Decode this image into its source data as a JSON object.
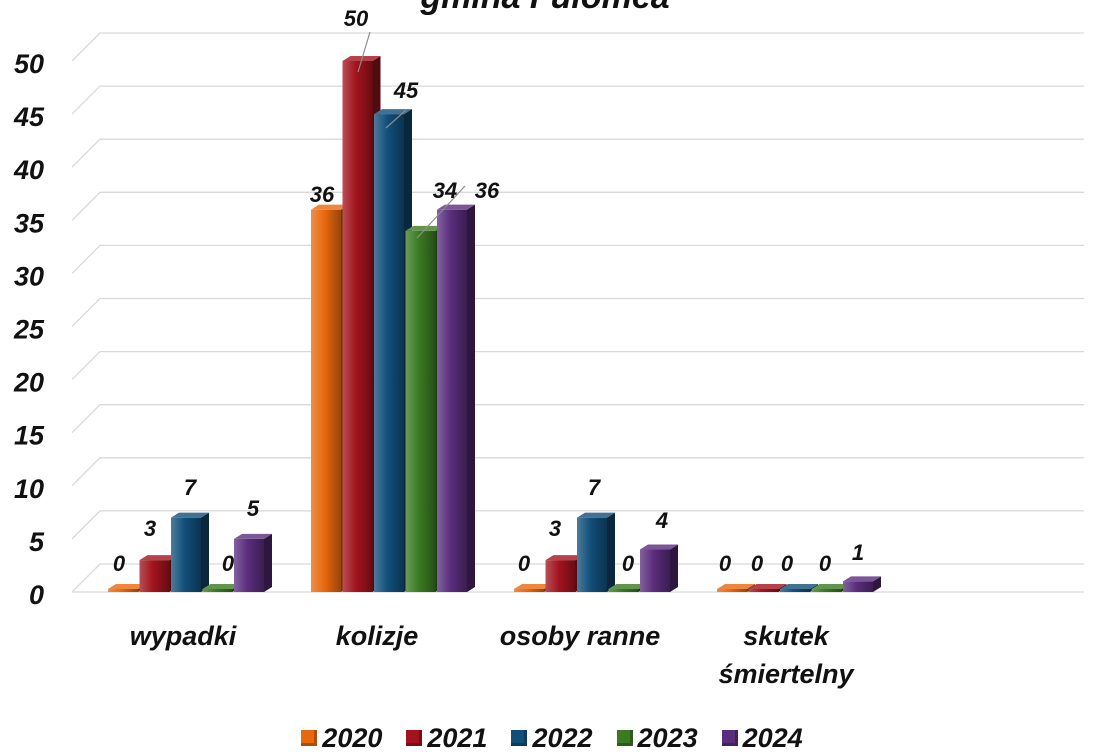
{
  "chart_data": {
    "type": "bar",
    "title": "gmina Fułomea",
    "categories": [
      "wypadki",
      "kolizje",
      "osoby ranne",
      "skutek\nśmiertelny"
    ],
    "series": [
      {
        "name": "2020",
        "color": "#e8680e",
        "values": [
          0,
          36,
          0,
          0
        ]
      },
      {
        "name": "2021",
        "color": "#a2131d",
        "values": [
          3,
          50,
          3,
          0
        ]
      },
      {
        "name": "2022",
        "color": "#114f7a",
        "values": [
          7,
          45,
          7,
          0
        ]
      },
      {
        "name": "2023",
        "color": "#3a7a22",
        "values": [
          0,
          34,
          0,
          0
        ]
      },
      {
        "name": "2024",
        "color": "#5a2d7d",
        "values": [
          5,
          36,
          4,
          1
        ]
      }
    ],
    "y_ticks": [
      0,
      5,
      10,
      15,
      20,
      25,
      30,
      35,
      40,
      45,
      50
    ],
    "ylim": [
      0,
      50
    ],
    "grid": true,
    "legend_position": "bottom",
    "style": "3d-column"
  }
}
